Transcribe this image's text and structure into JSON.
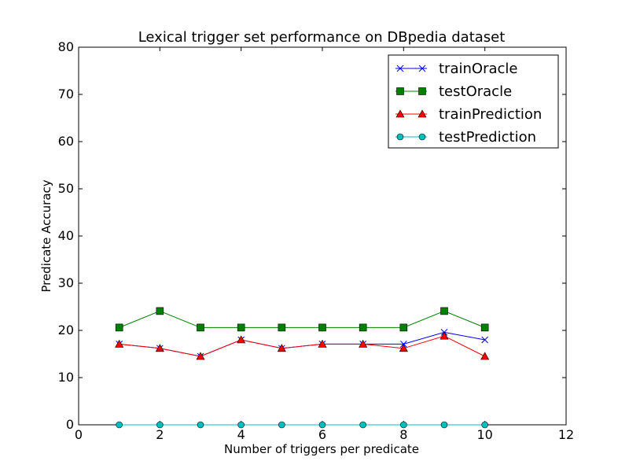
{
  "chart_data": {
    "type": "line",
    "title": "Lexical trigger set performance on DBpedia dataset",
    "xlabel": "Number of triggers per predicate",
    "ylabel": "Predicate Accuracy",
    "xlim": [
      0,
      12
    ],
    "ylim": [
      0,
      80
    ],
    "xticks": [
      "0",
      "2",
      "4",
      "6",
      "8",
      "10",
      "12"
    ],
    "yticks": [
      "0",
      "10",
      "20",
      "30",
      "40",
      "50",
      "60",
      "70",
      "80"
    ],
    "grid": false,
    "legend_position": "top-right",
    "x": [
      1,
      2,
      3,
      4,
      5,
      6,
      7,
      8,
      9,
      10
    ],
    "series": [
      {
        "name": "trainOracle",
        "color": "#0000ff",
        "marker": "x",
        "values": [
          17.1,
          16.2,
          14.5,
          18.0,
          16.2,
          17.1,
          17.1,
          17.1,
          19.6,
          18.0
        ]
      },
      {
        "name": "testOracle",
        "color": "#008000",
        "marker": "square",
        "values": [
          20.6,
          24.1,
          20.6,
          20.6,
          20.6,
          20.6,
          20.6,
          20.6,
          24.1,
          20.6
        ]
      },
      {
        "name": "trainPrediction",
        "color": "#ff0000",
        "marker": "triangle",
        "values": [
          17.1,
          16.2,
          14.5,
          18.0,
          16.2,
          17.1,
          17.1,
          16.2,
          18.8,
          14.5
        ]
      },
      {
        "name": "testPrediction",
        "color": "#00bfbf",
        "marker": "circle",
        "values": [
          0,
          0,
          0,
          0,
          0,
          0,
          0,
          0,
          0,
          0
        ]
      }
    ]
  }
}
